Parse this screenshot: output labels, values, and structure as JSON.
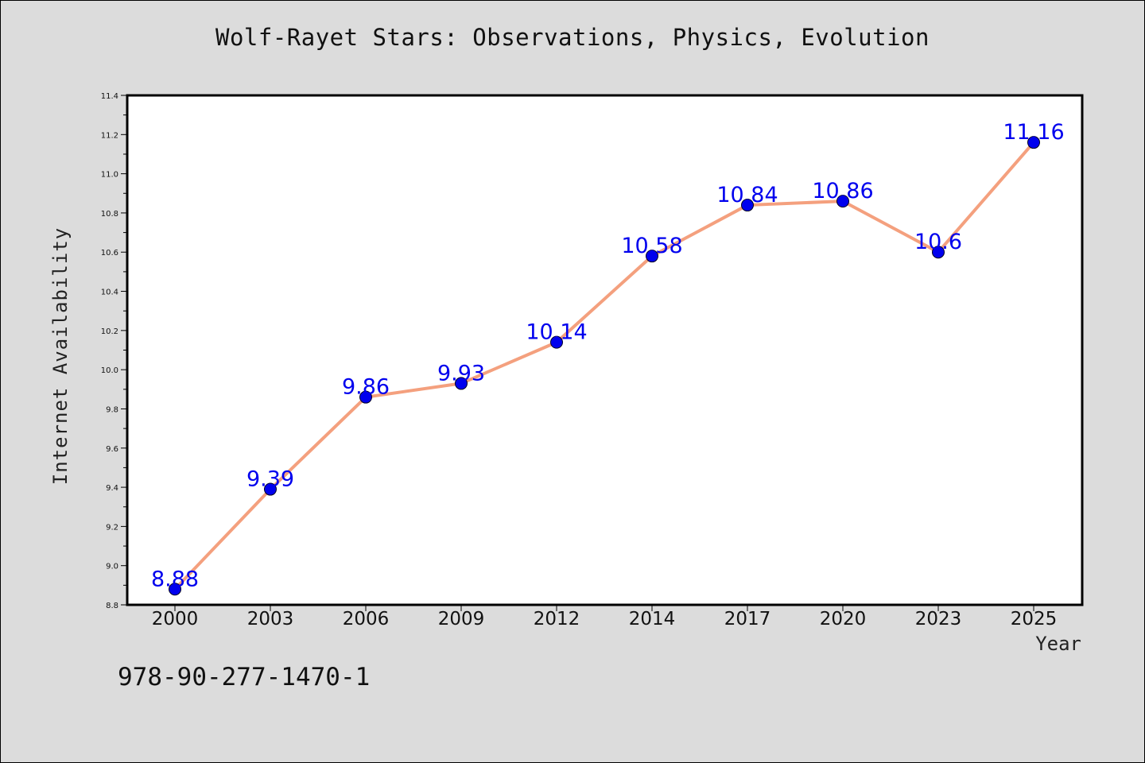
{
  "chart_data": {
    "type": "line",
    "title": "Wolf-Rayet Stars: Observations, Physics, Evolution",
    "xlabel": "Year",
    "ylabel": "Internet Availability",
    "categories": [
      "2000",
      "2003",
      "2006",
      "2009",
      "2012",
      "2014",
      "2017",
      "2020",
      "2023",
      "2025"
    ],
    "series": [
      {
        "values": [
          8.88,
          9.39,
          9.86,
          9.93,
          10.14,
          10.58,
          10.84,
          10.86,
          10.6,
          11.16
        ],
        "labels": [
          "8.88",
          "9.39",
          "9.86",
          "9.93",
          "10.14",
          "10.58",
          "10.84",
          "10.86",
          "10.6",
          "11.16"
        ],
        "line_color": "#f4a07e",
        "marker_color": "#0000ee"
      }
    ],
    "ylim": [
      8.8,
      11.4
    ],
    "yticks": [
      "8.8",
      "9.0",
      "9.2",
      "9.4",
      "9.6",
      "9.8",
      "10.0",
      "10.2",
      "10.4",
      "10.6",
      "10.8",
      "11.0",
      "11.2",
      "11.4"
    ],
    "grid": false,
    "legend": false
  },
  "footer": {
    "isbn": "978-90-277-1470-1"
  },
  "colors": {
    "background": "#dcdcdc",
    "plot_background": "#ffffff",
    "line": "#f4a07e",
    "marker": "#0000ee",
    "data_label": "#0000ee"
  }
}
